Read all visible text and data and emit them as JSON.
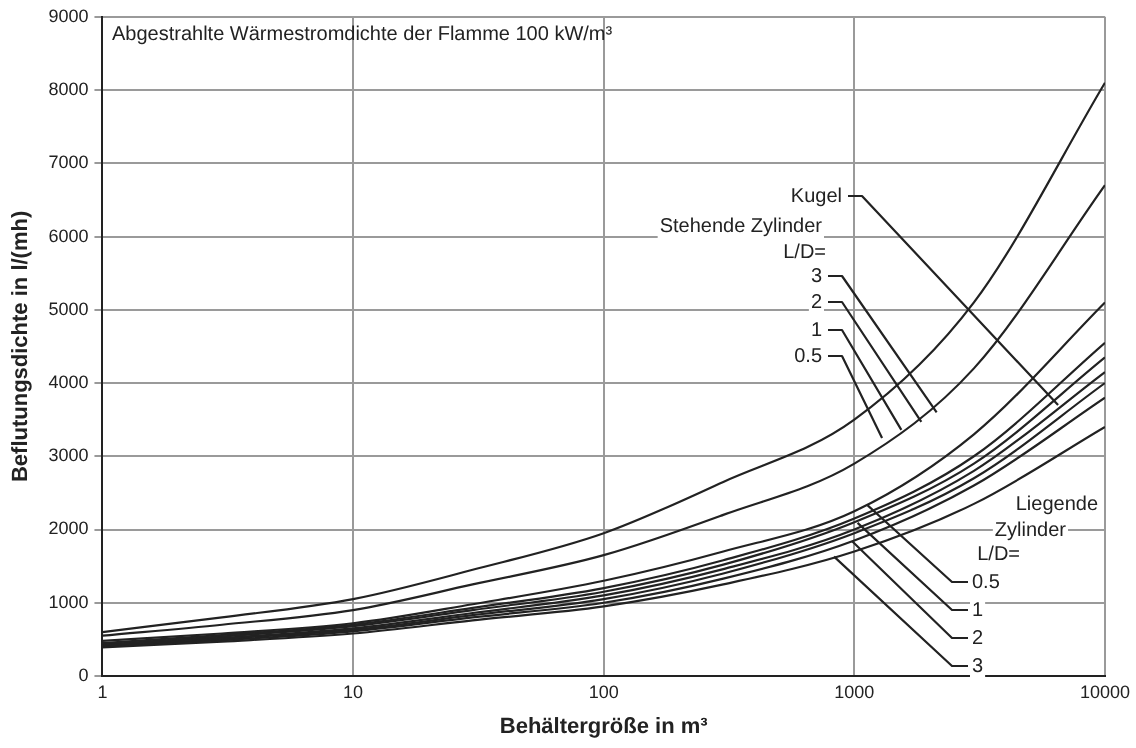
{
  "chart_data": {
    "type": "line",
    "title": "Abgestrahlte Wärmestromdichte der Flamme 100 kW/m³",
    "xlabel": "Behältergröße in m³",
    "ylabel": "Beflutungsdichte in l/(mh)",
    "x": [
      1,
      3,
      10,
      30,
      100,
      300,
      1000,
      3000,
      10000
    ],
    "series": [
      {
        "color": "#222222",
        "values": [
          600,
          800,
          1050,
          1450,
          1950,
          2650,
          3500,
          5100,
          8100
        ]
      },
      {
        "color": "#222222",
        "values": [
          550,
          700,
          900,
          1250,
          1650,
          2200,
          2900,
          4200,
          6700
        ]
      },
      {
        "color": "#222222",
        "values": [
          480,
          580,
          720,
          980,
          1300,
          1700,
          2250,
          3300,
          5100
        ]
      },
      {
        "color": "#222222",
        "values": [
          450,
          560,
          700,
          930,
          1200,
          1580,
          2150,
          3000,
          4550
        ]
      },
      {
        "color": "#222222",
        "values": [
          430,
          540,
          680,
          900,
          1150,
          1520,
          2100,
          2900,
          4350
        ]
      },
      {
        "color": "#222222",
        "values": [
          420,
          520,
          650,
          860,
          1100,
          1460,
          2000,
          2800,
          4150
        ]
      },
      {
        "color": "#222222",
        "values": [
          410,
          510,
          630,
          830,
          1050,
          1400,
          1950,
          2700,
          4000
        ]
      },
      {
        "color": "#222222",
        "values": [
          400,
          490,
          610,
          800,
          1000,
          1330,
          1850,
          2600,
          3800
        ]
      },
      {
        "color": "#222222",
        "values": [
          390,
          470,
          580,
          760,
          950,
          1250,
          1700,
          2350,
          3400
        ]
      }
    ],
    "annotations": [
      {
        "text": "Kugel",
        "x": 6500,
        "y": 3700
      },
      "Stehende Zylinder",
      "L/D=",
      {
        "text": "3",
        "x": 2130,
        "y": 3600
      },
      {
        "text": "2",
        "x": 1850,
        "y": 3470
      },
      {
        "text": "1",
        "x": 1540,
        "y": 3360
      },
      {
        "text": "0.5",
        "x": 1290,
        "y": 3250
      },
      "Liegende",
      "Zylinder",
      "L/D=",
      {
        "text": "0.5",
        "x": 1130,
        "y": 2330
      },
      {
        "text": "1",
        "x": 1030,
        "y": 2090
      },
      {
        "text": "2",
        "x": 980,
        "y": 1840
      },
      {
        "text": "3",
        "x": 830,
        "y": 1630
      }
    ],
    "log": "x",
    "xlim": [
      1,
      10000
    ],
    "ylim": [
      0,
      9000
    ],
    "xticks": [
      1,
      10,
      100,
      1000,
      10000
    ],
    "yticks": [
      0,
      1000,
      2000,
      3000,
      4000,
      5000,
      6000,
      7000,
      8000,
      9000
    ],
    "grid": true,
    "legend": false,
    "marker": "none",
    "line_style": "solid"
  }
}
